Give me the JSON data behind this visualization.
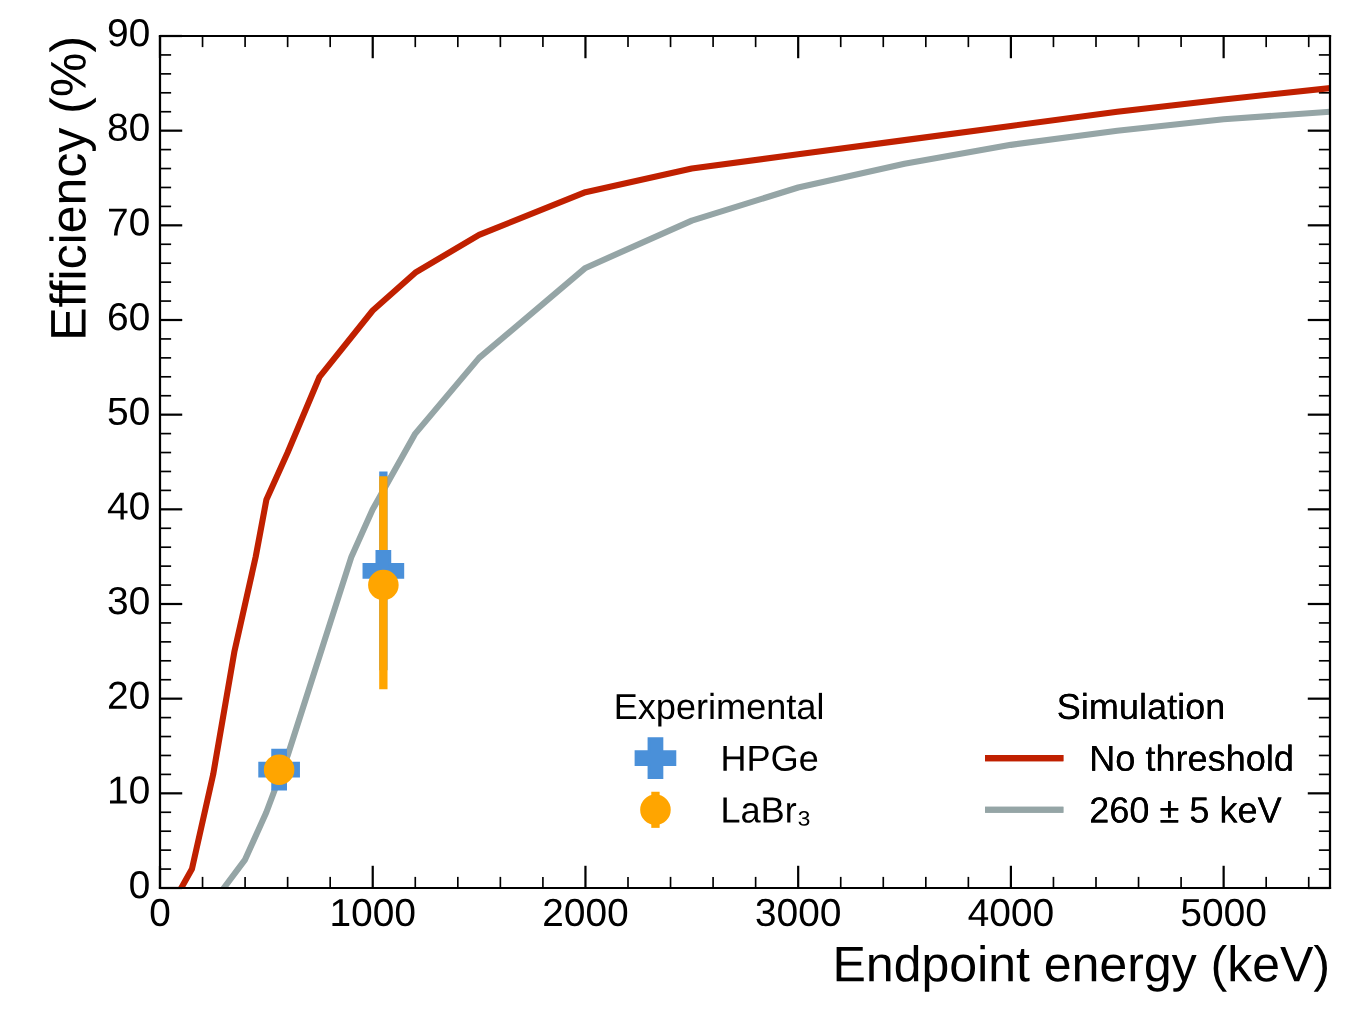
{
  "chart_data": {
    "type": "line",
    "xlabel": "Endpoint energy (keV)",
    "ylabel": "Efficiency (%)",
    "xlim": [
      0,
      5500
    ],
    "ylim": [
      0,
      90
    ],
    "xticks": [
      0,
      1000,
      2000,
      3000,
      4000,
      5000
    ],
    "yticks": [
      0,
      10,
      20,
      30,
      40,
      50,
      60,
      70,
      80,
      90
    ],
    "grid": false,
    "legend": "bottom right",
    "annotations": [
      "Experimental",
      "Simulation"
    ],
    "series": [
      {
        "name": "HPGe",
        "type": "scatter",
        "marker": "cross",
        "color": "#4a90d9",
        "x": [
          560,
          1050
        ],
        "values": [
          12.5,
          33.5
        ],
        "errors": [
          null,
          [
            23,
            44
          ]
        ]
      },
      {
        "name": "LaBr₃",
        "type": "scatter",
        "marker": "circle",
        "color": "#ffa500",
        "x": [
          560,
          1050
        ],
        "values": [
          12.5,
          32
        ],
        "errors": [
          null,
          [
            21,
            43.5
          ]
        ]
      },
      {
        "name": "No threshold",
        "type": "line",
        "color": "#c02000",
        "x": [
          100,
          150,
          250,
          350,
          450,
          500,
          600,
          750,
          1000,
          1200,
          1500,
          2000,
          2500,
          3000,
          3500,
          4000,
          4500,
          5000,
          5500
        ],
        "values": [
          0,
          2,
          12,
          25,
          35,
          41,
          46,
          54,
          61,
          65,
          69,
          73.5,
          76,
          77.5,
          79,
          80.5,
          82,
          83.3,
          84.5
        ]
      },
      {
        "name": "260 ± 5 keV",
        "type": "line",
        "color": "#95a5a6",
        "x": [
          300,
          400,
          500,
          600,
          700,
          800,
          900,
          1000,
          1200,
          1500,
          2000,
          2500,
          3000,
          3500,
          4000,
          4500,
          5000,
          5500
        ],
        "values": [
          0,
          3,
          8,
          14,
          21,
          28,
          35,
          40,
          48,
          56,
          65.5,
          70.5,
          74,
          76.5,
          78.5,
          80,
          81.2,
          82
        ]
      }
    ]
  }
}
